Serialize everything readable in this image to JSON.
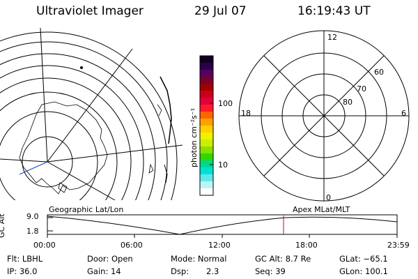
{
  "header": {
    "instrument": "Ultraviolet Imager",
    "date": "29 Jul 07",
    "time": "16:19:43 UT"
  },
  "colorbar": {
    "unit_label": "photon cm⁻²s⁻¹",
    "ticks": [
      "100",
      "10"
    ],
    "colors": [
      "#100020",
      "#2a0048",
      "#560060",
      "#7a0028",
      "#a00000",
      "#c8001c",
      "#e4003a",
      "#ff1a2a",
      "#ff6400",
      "#ffa000",
      "#ffd000",
      "#f0f000",
      "#c8f000",
      "#88e000",
      "#30d800",
      "#00d890",
      "#00e0d8",
      "#60e8e8",
      "#bff4f4",
      "#ffffff"
    ]
  },
  "polar_plot": {
    "mlt_labels": {
      "top": "12",
      "bottom": "0",
      "left": "18",
      "right": "6"
    },
    "lat_labels": [
      "60",
      "70",
      "80"
    ]
  },
  "timeline": {
    "left_title": "Geographic Lat/Lon",
    "right_title": "Apex MLat/MLT",
    "axis_label": "GC Alt",
    "y_ticks": [
      "9.0",
      "1.8"
    ],
    "x_ticks": [
      "00:00",
      "06:00",
      "12:00",
      "18:00",
      "23:59"
    ]
  },
  "status": {
    "filter": "Flt: LBHL",
    "ip": "IP: 36.0",
    "door": "Door: Open",
    "gain": "Gain: 14",
    "mode": "Mode: Normal",
    "dsp_label": "Dsp:",
    "dsp_value": "2.3",
    "gc_alt": "GC Alt: 8.7 Re",
    "seq": "Seq: 39",
    "glat": "GLat: −65.1",
    "glon": "GLon: 100.1"
  }
}
